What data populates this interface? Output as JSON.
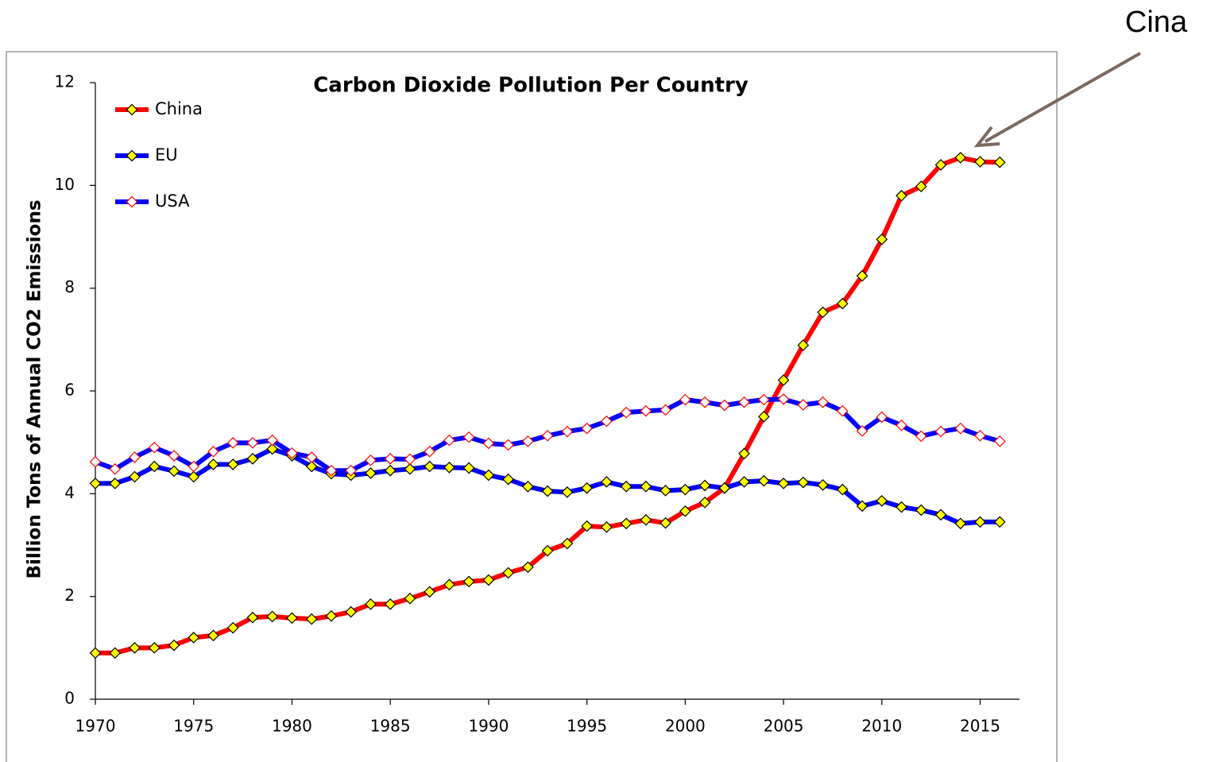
{
  "chart_data": {
    "type": "line",
    "title": "Carbon Dioxide Pollution Per Country",
    "y_label": "Billion Tons of Annual CO2 Emissions",
    "annotation": "Cina",
    "x": [
      1970,
      1971,
      1972,
      1973,
      1974,
      1975,
      1976,
      1977,
      1978,
      1979,
      1980,
      1981,
      1982,
      1983,
      1984,
      1985,
      1986,
      1987,
      1988,
      1989,
      1990,
      1991,
      1992,
      1993,
      1994,
      1995,
      1996,
      1997,
      1998,
      1999,
      2000,
      2001,
      2002,
      2003,
      2004,
      2005,
      2006,
      2007,
      2008,
      2009,
      2010,
      2011,
      2012,
      2013,
      2014,
      2015,
      2016
    ],
    "series": [
      {
        "name": "China",
        "color": "#ff0000",
        "marker_fill": "#ffff00",
        "marker_stroke": "#000000",
        "values": [
          0.9,
          0.9,
          1.0,
          1.0,
          1.05,
          1.2,
          1.24,
          1.39,
          1.59,
          1.61,
          1.58,
          1.56,
          1.62,
          1.7,
          1.85,
          1.85,
          1.96,
          2.09,
          2.23,
          2.29,
          2.32,
          2.46,
          2.57,
          2.89,
          3.03,
          3.37,
          3.35,
          3.42,
          3.49,
          3.43,
          3.66,
          3.83,
          4.11,
          4.78,
          5.5,
          6.21,
          6.89,
          7.53,
          7.7,
          8.24,
          8.95,
          9.8,
          9.98,
          10.4,
          10.54,
          10.46,
          10.45
        ]
      },
      {
        "name": "EU",
        "color": "#0000ff",
        "marker_fill": "#ffff00",
        "marker_stroke": "#000000",
        "values": [
          4.2,
          4.2,
          4.33,
          4.53,
          4.44,
          4.33,
          4.57,
          4.57,
          4.68,
          4.87,
          4.74,
          4.53,
          4.39,
          4.36,
          4.4,
          4.45,
          4.48,
          4.53,
          4.51,
          4.5,
          4.36,
          4.28,
          4.14,
          4.05,
          4.03,
          4.11,
          4.23,
          4.14,
          4.14,
          4.06,
          4.08,
          4.16,
          4.11,
          4.23,
          4.25,
          4.2,
          4.22,
          4.17,
          4.08,
          3.76,
          3.86,
          3.74,
          3.68,
          3.59,
          3.42,
          3.45,
          3.45
        ]
      },
      {
        "name": "USA",
        "color": "#0000ff",
        "marker_fill": "#ffffff",
        "marker_stroke": "#ff0000",
        "values": [
          4.62,
          4.48,
          4.71,
          4.9,
          4.74,
          4.53,
          4.82,
          4.99,
          4.99,
          5.04,
          4.79,
          4.71,
          4.45,
          4.45,
          4.65,
          4.68,
          4.67,
          4.82,
          5.04,
          5.1,
          4.98,
          4.95,
          5.02,
          5.13,
          5.21,
          5.27,
          5.41,
          5.58,
          5.61,
          5.63,
          5.83,
          5.78,
          5.72,
          5.78,
          5.83,
          5.84,
          5.73,
          5.78,
          5.61,
          5.22,
          5.49,
          5.33,
          5.12,
          5.21,
          5.27,
          5.13,
          5.02
        ]
      }
    ],
    "xlim": [
      1970,
      2017
    ],
    "xticks": [
      1970,
      1975,
      1980,
      1985,
      1990,
      1995,
      2000,
      2005,
      2010,
      2015
    ],
    "ylim": [
      0,
      12
    ],
    "yticks": [
      0,
      2,
      4,
      6,
      8,
      10,
      12
    ],
    "legend": "top-left"
  }
}
